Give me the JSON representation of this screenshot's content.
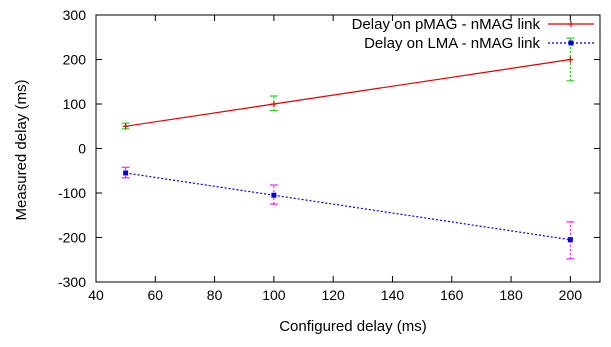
{
  "chart_data": {
    "type": "line",
    "xlabel": "Configured delay (ms)",
    "ylabel": "Measured delay (ms)",
    "xlim": [
      40,
      210
    ],
    "ylim": [
      -300,
      300
    ],
    "xticks": [
      40,
      60,
      80,
      100,
      120,
      140,
      160,
      180,
      200
    ],
    "yticks": [
      -300,
      -200,
      -100,
      0,
      100,
      200,
      300
    ],
    "xtick_labels": [
      "40",
      "60",
      "80",
      "100",
      "120",
      "140",
      "160",
      "180",
      "200"
    ],
    "ytick_labels": [
      "-300",
      "-200",
      "-100",
      "0",
      "100",
      "200",
      "300"
    ],
    "grid": false,
    "legend_position": "top-right",
    "series": [
      {
        "name": "Delay on pMAG - nMAG link",
        "line_color": "#e00000",
        "line_style": "solid",
        "marker": "plus",
        "errorbar_color": "#00c800",
        "x": [
          50,
          100,
          200
        ],
        "y": [
          50,
          100,
          200
        ],
        "error_low": [
          44,
          85,
          152
        ],
        "error_high": [
          57,
          118,
          248
        ]
      },
      {
        "name": "Delay on LMA - nMAG link",
        "line_color": "#0000d0",
        "line_style": "dotted",
        "marker": "square",
        "errorbar_color": "#e000e0",
        "x": [
          50,
          100,
          200
        ],
        "y": [
          -55,
          -105,
          -205
        ],
        "error_low": [
          -66,
          -125,
          -248
        ],
        "error_high": [
          -42,
          -82,
          -165
        ]
      }
    ]
  }
}
